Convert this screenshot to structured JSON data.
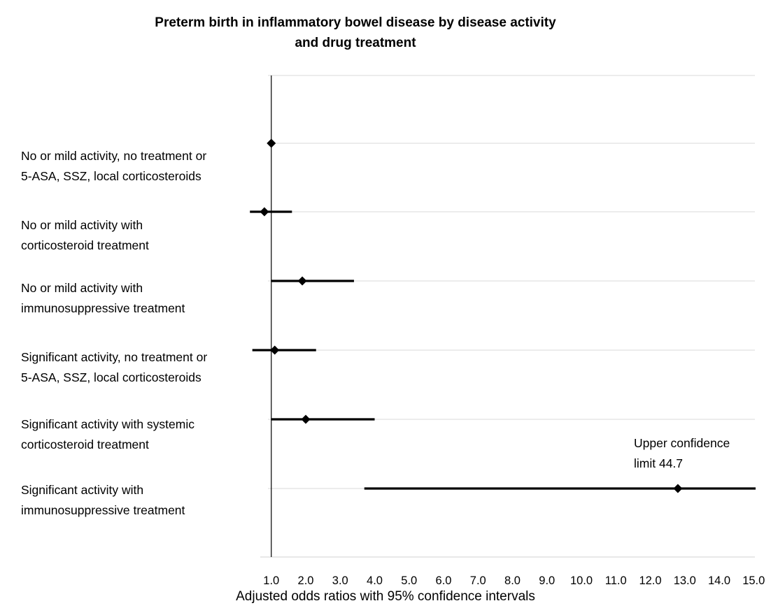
{
  "chart_data": {
    "type": "forest",
    "title": [
      "Preterm birth in inflammatory bowel disease by disease activity",
      "and drug treatment"
    ],
    "xlabel": "Adjusted odds ratios with 95% confidence intervals",
    "ylabel": "",
    "xlim": [
      0.0,
      15.0
    ],
    "reference_line": 1.0,
    "ticks": [
      1.0,
      2.0,
      3.0,
      4.0,
      5.0,
      6.0,
      7.0,
      8.0,
      9.0,
      10.0,
      11.0,
      12.0,
      13.0,
      14.0,
      15.0
    ],
    "tick_labels": [
      "1.0",
      "2.0",
      "3.0",
      "4.0",
      "5.0",
      "6.0",
      "7.0",
      "8.0",
      "9.0",
      "10.0",
      "11.0",
      "12.0",
      "13.0",
      "14.0",
      "15.0"
    ],
    "grid": "horizontal",
    "rows": [
      {
        "label": [
          "No or mild activity, no treatment or",
          "5-ASA, SSZ, local corticosteroids"
        ],
        "or": 1.0,
        "lower": null,
        "upper": null
      },
      {
        "label": [
          "No or mild activity with",
          "corticosteroid treatment"
        ],
        "or": 0.8,
        "lower": 0.38,
        "upper": 1.6
      },
      {
        "label": [
          "No or mild activity with",
          "immunosuppressive treatment"
        ],
        "or": 1.9,
        "lower": 1.0,
        "upper": 3.4
      },
      {
        "label": [
          "Significant activity, no treatment or",
          "5-ASA, SSZ, local corticosteroids"
        ],
        "or": 1.1,
        "lower": 0.45,
        "upper": 2.3
      },
      {
        "label": [
          "Significant activity with systemic",
          "corticosteroid treatment"
        ],
        "or": 2.0,
        "lower": 1.0,
        "upper": 4.0
      },
      {
        "label": [
          "Significant activity with",
          "immunosuppressive treatment"
        ],
        "or": 12.8,
        "lower": 3.7,
        "upper": 44.7
      }
    ],
    "annotation": [
      "Upper confidence",
      "limit 44.7"
    ]
  }
}
